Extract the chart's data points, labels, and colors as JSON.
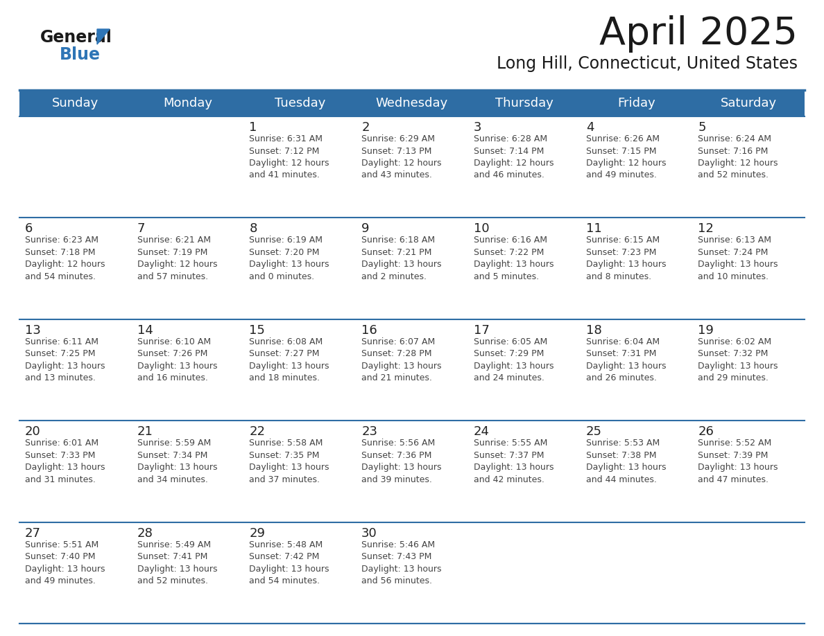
{
  "title": "April 2025",
  "subtitle": "Long Hill, Connecticut, United States",
  "header_bg_color": "#2E6DA4",
  "header_text_color": "#FFFFFF",
  "row_line_color": "#2E6DA4",
  "text_color": "#444444",
  "day_number_color": "#222222",
  "day_headers": [
    "Sunday",
    "Monday",
    "Tuesday",
    "Wednesday",
    "Thursday",
    "Friday",
    "Saturday"
  ],
  "weeks": [
    [
      {
        "day": "",
        "text": ""
      },
      {
        "day": "",
        "text": ""
      },
      {
        "day": "1",
        "text": "Sunrise: 6:31 AM\nSunset: 7:12 PM\nDaylight: 12 hours\nand 41 minutes."
      },
      {
        "day": "2",
        "text": "Sunrise: 6:29 AM\nSunset: 7:13 PM\nDaylight: 12 hours\nand 43 minutes."
      },
      {
        "day": "3",
        "text": "Sunrise: 6:28 AM\nSunset: 7:14 PM\nDaylight: 12 hours\nand 46 minutes."
      },
      {
        "day": "4",
        "text": "Sunrise: 6:26 AM\nSunset: 7:15 PM\nDaylight: 12 hours\nand 49 minutes."
      },
      {
        "day": "5",
        "text": "Sunrise: 6:24 AM\nSunset: 7:16 PM\nDaylight: 12 hours\nand 52 minutes."
      }
    ],
    [
      {
        "day": "6",
        "text": "Sunrise: 6:23 AM\nSunset: 7:18 PM\nDaylight: 12 hours\nand 54 minutes."
      },
      {
        "day": "7",
        "text": "Sunrise: 6:21 AM\nSunset: 7:19 PM\nDaylight: 12 hours\nand 57 minutes."
      },
      {
        "day": "8",
        "text": "Sunrise: 6:19 AM\nSunset: 7:20 PM\nDaylight: 13 hours\nand 0 minutes."
      },
      {
        "day": "9",
        "text": "Sunrise: 6:18 AM\nSunset: 7:21 PM\nDaylight: 13 hours\nand 2 minutes."
      },
      {
        "day": "10",
        "text": "Sunrise: 6:16 AM\nSunset: 7:22 PM\nDaylight: 13 hours\nand 5 minutes."
      },
      {
        "day": "11",
        "text": "Sunrise: 6:15 AM\nSunset: 7:23 PM\nDaylight: 13 hours\nand 8 minutes."
      },
      {
        "day": "12",
        "text": "Sunrise: 6:13 AM\nSunset: 7:24 PM\nDaylight: 13 hours\nand 10 minutes."
      }
    ],
    [
      {
        "day": "13",
        "text": "Sunrise: 6:11 AM\nSunset: 7:25 PM\nDaylight: 13 hours\nand 13 minutes."
      },
      {
        "day": "14",
        "text": "Sunrise: 6:10 AM\nSunset: 7:26 PM\nDaylight: 13 hours\nand 16 minutes."
      },
      {
        "day": "15",
        "text": "Sunrise: 6:08 AM\nSunset: 7:27 PM\nDaylight: 13 hours\nand 18 minutes."
      },
      {
        "day": "16",
        "text": "Sunrise: 6:07 AM\nSunset: 7:28 PM\nDaylight: 13 hours\nand 21 minutes."
      },
      {
        "day": "17",
        "text": "Sunrise: 6:05 AM\nSunset: 7:29 PM\nDaylight: 13 hours\nand 24 minutes."
      },
      {
        "day": "18",
        "text": "Sunrise: 6:04 AM\nSunset: 7:31 PM\nDaylight: 13 hours\nand 26 minutes."
      },
      {
        "day": "19",
        "text": "Sunrise: 6:02 AM\nSunset: 7:32 PM\nDaylight: 13 hours\nand 29 minutes."
      }
    ],
    [
      {
        "day": "20",
        "text": "Sunrise: 6:01 AM\nSunset: 7:33 PM\nDaylight: 13 hours\nand 31 minutes."
      },
      {
        "day": "21",
        "text": "Sunrise: 5:59 AM\nSunset: 7:34 PM\nDaylight: 13 hours\nand 34 minutes."
      },
      {
        "day": "22",
        "text": "Sunrise: 5:58 AM\nSunset: 7:35 PM\nDaylight: 13 hours\nand 37 minutes."
      },
      {
        "day": "23",
        "text": "Sunrise: 5:56 AM\nSunset: 7:36 PM\nDaylight: 13 hours\nand 39 minutes."
      },
      {
        "day": "24",
        "text": "Sunrise: 5:55 AM\nSunset: 7:37 PM\nDaylight: 13 hours\nand 42 minutes."
      },
      {
        "day": "25",
        "text": "Sunrise: 5:53 AM\nSunset: 7:38 PM\nDaylight: 13 hours\nand 44 minutes."
      },
      {
        "day": "26",
        "text": "Sunrise: 5:52 AM\nSunset: 7:39 PM\nDaylight: 13 hours\nand 47 minutes."
      }
    ],
    [
      {
        "day": "27",
        "text": "Sunrise: 5:51 AM\nSunset: 7:40 PM\nDaylight: 13 hours\nand 49 minutes."
      },
      {
        "day": "28",
        "text": "Sunrise: 5:49 AM\nSunset: 7:41 PM\nDaylight: 13 hours\nand 52 minutes."
      },
      {
        "day": "29",
        "text": "Sunrise: 5:48 AM\nSunset: 7:42 PM\nDaylight: 13 hours\nand 54 minutes."
      },
      {
        "day": "30",
        "text": "Sunrise: 5:46 AM\nSunset: 7:43 PM\nDaylight: 13 hours\nand 56 minutes."
      },
      {
        "day": "",
        "text": ""
      },
      {
        "day": "",
        "text": ""
      },
      {
        "day": "",
        "text": ""
      }
    ]
  ],
  "logo_black_color": "#1a1a1a",
  "logo_blue_color": "#2E75B6",
  "title_fontsize": 40,
  "subtitle_fontsize": 17,
  "header_fontsize": 13,
  "day_number_fontsize": 13,
  "cell_text_fontsize": 9
}
